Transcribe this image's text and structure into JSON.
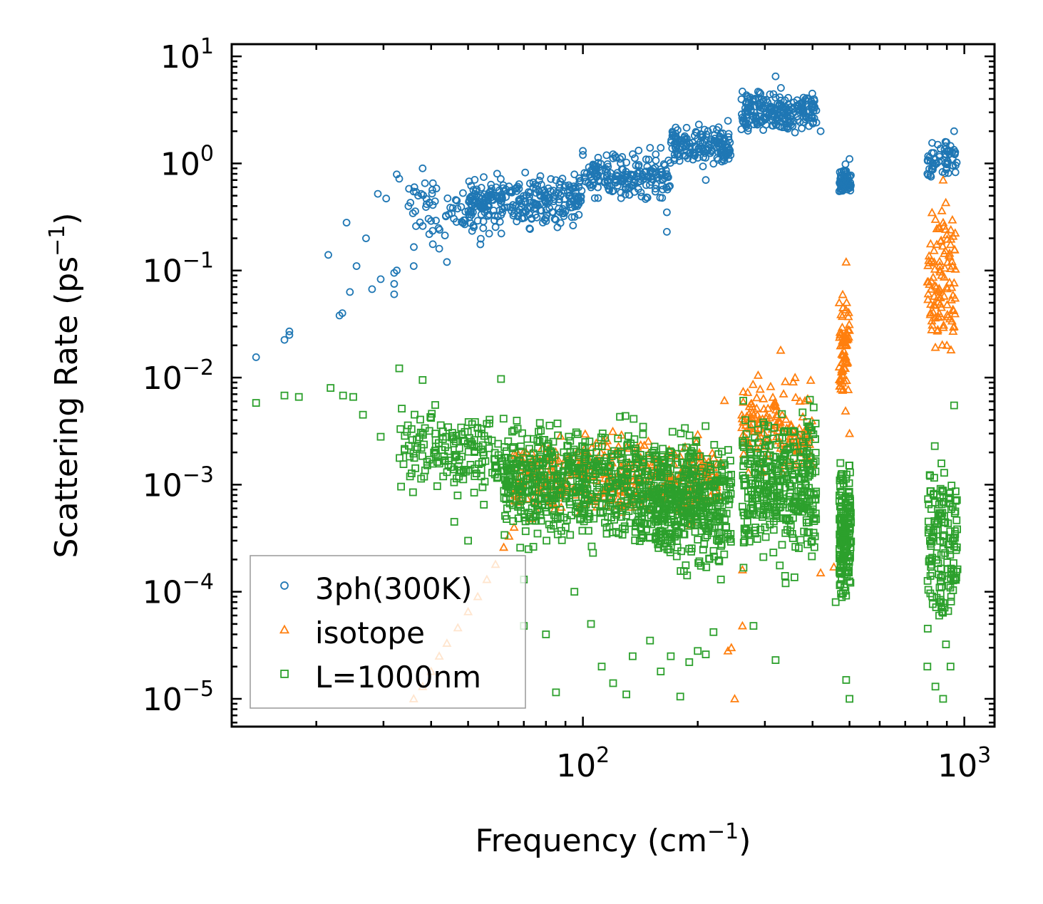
{
  "chart_data": {
    "type": "scatter",
    "xscale": "log",
    "yscale": "log",
    "xlim": [
      12,
      1200
    ],
    "ylim": [
      5.5e-06,
      13
    ],
    "xlabel": {
      "text": "Frequency (cm",
      "sup": "−1",
      "close": ")"
    },
    "ylabel": {
      "text": "Scattering Rate (ps",
      "sup": "−1",
      "close": ")"
    },
    "x_ticks": [
      {
        "value": 100,
        "base": "10",
        "exp": "2"
      },
      {
        "value": 1000,
        "base": "10",
        "exp": "3"
      }
    ],
    "y_ticks": [
      {
        "value": 10,
        "base": "10",
        "exp": "1"
      },
      {
        "value": 1,
        "base": "10",
        "exp": "0"
      },
      {
        "value": 0.1,
        "base": "10",
        "exp": "−1"
      },
      {
        "value": 0.01,
        "base": "10",
        "exp": "−2"
      },
      {
        "value": 0.001,
        "base": "10",
        "exp": "−3"
      },
      {
        "value": 0.0001,
        "base": "10",
        "exp": "−4"
      },
      {
        "value": 1e-05,
        "base": "10",
        "exp": "−5"
      }
    ],
    "legend_position": "lower-left",
    "series": [
      {
        "name": "3ph(300K)",
        "marker": "circle",
        "color": "#1f77b4",
        "points": [
          [
            13.9,
            0.0155
          ],
          [
            16.5,
            0.0225
          ],
          [
            17.0,
            0.025
          ],
          [
            17.0,
            0.027
          ],
          [
            21.5,
            0.14
          ],
          [
            23.0,
            0.038
          ],
          [
            23.4,
            0.04
          ],
          [
            24.0,
            0.28
          ],
          [
            24.5,
            0.063
          ],
          [
            25.5,
            0.11
          ],
          [
            27.0,
            0.2
          ],
          [
            28.0,
            0.067
          ],
          [
            29.0,
            0.52
          ],
          [
            29.5,
            0.083
          ],
          [
            30.5,
            0.47
          ],
          [
            32.0,
            0.06
          ],
          [
            32.0,
            0.075
          ],
          [
            32.0,
            0.095
          ],
          [
            32.5,
            0.1
          ],
          [
            32.5,
            0.79
          ],
          [
            33.0,
            0.72
          ],
          [
            35.0,
            0.58
          ],
          [
            36.0,
            0.11
          ],
          [
            36.5,
            0.26
          ],
          [
            37.0,
            0.5
          ],
          [
            38.0,
            0.9
          ],
          [
            40.0,
            0.29
          ],
          [
            42.0,
            0.16
          ],
          [
            44.0,
            0.12
          ],
          [
            49.0,
            0.27
          ],
          [
            62.0,
            0.55
          ],
          [
            64.0,
            0.61
          ],
          [
            66.0,
            0.34
          ],
          [
            68.0,
            0.58
          ],
          [
            70.0,
            0.35
          ],
          [
            72.0,
            0.54
          ],
          [
            75.0,
            0.33
          ],
          [
            80.0,
            0.31
          ],
          [
            85.0,
            0.53
          ],
          [
            90.0,
            0.62
          ],
          [
            95.0,
            0.79
          ],
          [
            100.0,
            1.31
          ],
          [
            100.0,
            1.2
          ],
          [
            105.0,
            0.86
          ],
          [
            110.0,
            0.92
          ],
          [
            120.0,
            1.22
          ],
          [
            130.0,
            1.02
          ],
          [
            140.0,
            1.32
          ],
          [
            150.0,
            1.4
          ],
          [
            160.0,
            1.4
          ],
          [
            166.0,
            0.23
          ],
          [
            166.0,
            0.35
          ],
          [
            175.0,
            1.9
          ],
          [
            190.0,
            1.55
          ],
          [
            200.0,
            1.7
          ],
          [
            210.0,
            0.7
          ],
          [
            230.0,
            1.3
          ],
          [
            240.0,
            2.5
          ],
          [
            262.0,
            4.7
          ],
          [
            270.0,
            4.0
          ],
          [
            290.0,
            2.5
          ],
          [
            320.0,
            6.5
          ],
          [
            340.0,
            3.2
          ],
          [
            350.0,
            2.5
          ],
          [
            370.0,
            3.6
          ],
          [
            390.0,
            4.0
          ],
          [
            420.0,
            2.0
          ],
          [
            470.0,
            0.55
          ],
          [
            490.0,
            0.85
          ],
          [
            500.0,
            1.1
          ],
          [
            800.0,
            0.8
          ],
          [
            860.0,
            1.2
          ],
          [
            900.0,
            1.3
          ],
          [
            940.0,
            2.0
          ]
        ],
        "clouds": [
          {
            "x_range": [
              34,
              62
            ],
            "y_range": [
              0.13,
              0.9
            ],
            "n": 80
          },
          {
            "x_range": [
              50,
              100
            ],
            "y_range": [
              0.22,
              0.95
            ],
            "n": 260
          },
          {
            "x_range": [
              100,
              170
            ],
            "y_range": [
              0.4,
              1.4
            ],
            "n": 180
          },
          {
            "x_range": [
              170,
              245
            ],
            "y_range": [
              0.8,
              2.5
            ],
            "n": 160
          },
          {
            "x_range": [
              260,
              410
            ],
            "y_range": [
              1.6,
              5.5
            ],
            "n": 220
          },
          {
            "x_range": [
              470,
              505
            ],
            "y_range": [
              0.45,
              1.05
            ],
            "n": 60
          },
          {
            "x_range": [
              800,
              960
            ],
            "y_range": [
              0.65,
              1.8
            ],
            "n": 60
          }
        ]
      },
      {
        "name": "isotope",
        "marker": "triangle",
        "color": "#ff7f0e",
        "points": [
          [
            36.0,
            1e-05
          ],
          [
            38.0,
            1.3e-05
          ],
          [
            40.0,
            1.8e-05
          ],
          [
            42.0,
            2.5e-05
          ],
          [
            44.0,
            3.3e-05
          ],
          [
            47.0,
            4.6e-05
          ],
          [
            50.0,
            6.5e-05
          ],
          [
            53.0,
            9e-05
          ],
          [
            56.0,
            0.00013
          ],
          [
            59.0,
            0.00018
          ],
          [
            62.0,
            0.00026
          ],
          [
            64.0,
            0.00033
          ],
          [
            66.0,
            0.0004
          ],
          [
            235.0,
            0.0061
          ],
          [
            240.0,
            2.8e-05
          ],
          [
            245.0,
            3e-05
          ],
          [
            250.0,
            1e-05
          ],
          [
            262.0,
            4.8e-05
          ],
          [
            262.0,
            0.00016
          ],
          [
            288.0,
            0.0105
          ],
          [
            330.0,
            0.018
          ],
          [
            360.0,
            0.01
          ],
          [
            420.0,
            0.00015
          ],
          [
            455.0,
            0.00017
          ],
          [
            470.0,
            0.05
          ],
          [
            490.0,
            0.12
          ],
          [
            500.0,
            0.003
          ],
          [
            840.0,
            0.3
          ],
          [
            880.0,
            0.7
          ],
          [
            900.0,
            0.02
          ],
          [
            940.0,
            0.03
          ]
        ],
        "clouds": [
          {
            "x_range": [
              66,
              230
            ],
            "y_range": [
              0.00035,
              0.004
            ],
            "n": 420
          },
          {
            "x_range": [
              260,
              400
            ],
            "y_range": [
              0.0009,
              0.012
            ],
            "n": 150
          },
          {
            "x_range": [
              470,
              500
            ],
            "y_range": [
              0.004,
              0.09
            ],
            "n": 70
          },
          {
            "x_range": [
              800,
              950
            ],
            "y_range": [
              0.01,
              0.8
            ],
            "n": 110
          }
        ]
      },
      {
        "name": "L=1000nm",
        "marker": "square",
        "color": "#2ca02c",
        "points": [
          [
            13.9,
            0.0058
          ],
          [
            16.5,
            0.0068
          ],
          [
            18.0,
            0.0066
          ],
          [
            21.8,
            0.008
          ],
          [
            23.5,
            0.0068
          ],
          [
            25.0,
            0.0066
          ],
          [
            26.5,
            0.0045
          ],
          [
            29.5,
            0.0028
          ],
          [
            33.0,
            0.0122
          ],
          [
            38.0,
            0.0095
          ],
          [
            40.0,
            0.0042
          ],
          [
            46.0,
            0.00045
          ],
          [
            50.0,
            0.0003
          ],
          [
            52.0,
            0.0012
          ],
          [
            55.0,
            0.00065
          ],
          [
            61.0,
            0.0097
          ],
          [
            70.0,
            0.00013
          ],
          [
            70.0,
            4.8e-05
          ],
          [
            72.0,
            0.00025
          ],
          [
            80.0,
            4e-05
          ],
          [
            85.0,
            1.15e-05
          ],
          [
            95.0,
            0.0001
          ],
          [
            105.0,
            5e-05
          ],
          [
            112.0,
            2e-05
          ],
          [
            120.0,
            1.4e-05
          ],
          [
            130.0,
            1.1e-05
          ],
          [
            135.0,
            2.5e-05
          ],
          [
            150.0,
            3.5e-05
          ],
          [
            160.0,
            1.8e-05
          ],
          [
            170.0,
            2.5e-05
          ],
          [
            180.0,
            1.05e-05
          ],
          [
            190.0,
            2.2e-05
          ],
          [
            200.0,
            2.8e-05
          ],
          [
            210.0,
            2.6e-05
          ],
          [
            220.0,
            4.2e-05
          ],
          [
            230.0,
            0.00013
          ],
          [
            280.0,
            4.8e-05
          ],
          [
            320.0,
            2.3e-05
          ],
          [
            340.0,
            0.00012
          ],
          [
            460.0,
            8e-05
          ],
          [
            490.0,
            1.5e-05
          ],
          [
            500.0,
            1e-05
          ],
          [
            800.0,
            2e-05
          ],
          [
            840.0,
            1.3e-05
          ],
          [
            860.0,
            8e-05
          ],
          [
            880.0,
            1e-05
          ],
          [
            920.0,
            2e-05
          ],
          [
            940.0,
            0.0055
          ]
        ],
        "clouds": [
          {
            "x_range": [
              33,
              62
            ],
            "y_range": [
              0.0006,
              0.0065
            ],
            "n": 160
          },
          {
            "x_range": [
              62,
              140
            ],
            "y_range": [
              0.00018,
              0.006
            ],
            "n": 520
          },
          {
            "x_range": [
              140,
              245
            ],
            "y_range": [
              0.00011,
              0.0045
            ],
            "n": 520
          },
          {
            "x_range": [
              262,
              410
            ],
            "y_range": [
              0.00012,
              0.008
            ],
            "n": 360
          },
          {
            "x_range": [
              470,
              505
            ],
            "y_range": [
              5e-05,
              0.0022
            ],
            "n": 170
          },
          {
            "x_range": [
              800,
              960
            ],
            "y_range": [
              2e-05,
              0.005
            ],
            "n": 150
          }
        ]
      }
    ],
    "legend_entries": [
      "3ph(300K)",
      "isotope",
      "L=1000nm"
    ]
  }
}
